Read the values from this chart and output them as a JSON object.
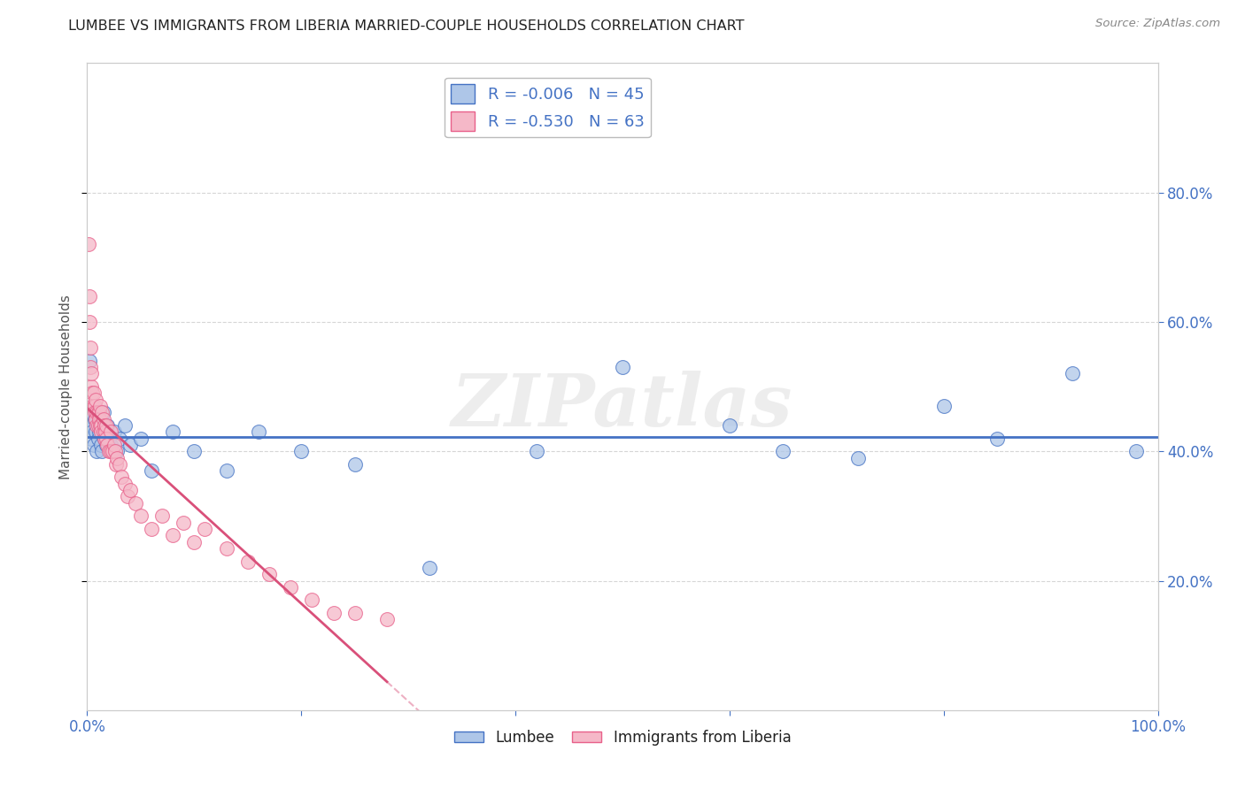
{
  "title": "LUMBEE VS IMMIGRANTS FROM LIBERIA MARRIED-COUPLE HOUSEHOLDS CORRELATION CHART",
  "source": "Source: ZipAtlas.com",
  "ylabel": "Married-couple Households",
  "xlim": [
    0,
    1.0
  ],
  "ylim": [
    0,
    1.0
  ],
  "xticks": [
    0.0,
    0.2,
    0.4,
    0.6,
    0.8,
    1.0
  ],
  "xticklabels": [
    "0.0%",
    "",
    "",
    "",
    "",
    "100.0%"
  ],
  "yticks_right": [
    0.2,
    0.4,
    0.6,
    0.8
  ],
  "yticklabels_right": [
    "20.0%",
    "40.0%",
    "60.0%",
    "80.0%"
  ],
  "lumbee_R": "-0.006",
  "lumbee_N": "45",
  "liberia_R": "-0.530",
  "liberia_N": "63",
  "lumbee_color": "#aec6e8",
  "liberia_color": "#f5b8c8",
  "lumbee_edge_color": "#4472c4",
  "liberia_edge_color": "#e8608a",
  "lumbee_line_color": "#4472c4",
  "liberia_line_color": "#d9507a",
  "background_color": "#ffffff",
  "grid_color": "#cccccc",
  "watermark": "ZIPatlas",
  "legend_label_color": "#4472c4",
  "tick_color": "#4472c4",
  "lumbee_x": [
    0.002,
    0.003,
    0.003,
    0.004,
    0.005,
    0.005,
    0.006,
    0.007,
    0.008,
    0.009,
    0.01,
    0.011,
    0.012,
    0.013,
    0.014,
    0.015,
    0.016,
    0.017,
    0.018,
    0.019,
    0.02,
    0.022,
    0.025,
    0.028,
    0.03,
    0.035,
    0.04,
    0.05,
    0.06,
    0.08,
    0.1,
    0.13,
    0.16,
    0.2,
    0.25,
    0.32,
    0.42,
    0.5,
    0.6,
    0.65,
    0.72,
    0.8,
    0.85,
    0.92,
    0.98
  ],
  "lumbee_y": [
    0.54,
    0.44,
    0.46,
    0.42,
    0.44,
    0.43,
    0.41,
    0.45,
    0.43,
    0.4,
    0.42,
    0.43,
    0.44,
    0.41,
    0.4,
    0.46,
    0.42,
    0.43,
    0.41,
    0.44,
    0.42,
    0.41,
    0.43,
    0.4,
    0.42,
    0.44,
    0.41,
    0.42,
    0.37,
    0.43,
    0.4,
    0.37,
    0.43,
    0.4,
    0.38,
    0.22,
    0.4,
    0.53,
    0.44,
    0.4,
    0.39,
    0.47,
    0.42,
    0.52,
    0.4
  ],
  "liberia_x": [
    0.001,
    0.002,
    0.002,
    0.003,
    0.003,
    0.004,
    0.004,
    0.005,
    0.005,
    0.006,
    0.006,
    0.007,
    0.007,
    0.008,
    0.008,
    0.009,
    0.009,
    0.01,
    0.01,
    0.011,
    0.011,
    0.012,
    0.012,
    0.013,
    0.013,
    0.014,
    0.015,
    0.015,
    0.016,
    0.016,
    0.017,
    0.018,
    0.018,
    0.019,
    0.02,
    0.022,
    0.022,
    0.024,
    0.025,
    0.026,
    0.027,
    0.028,
    0.03,
    0.032,
    0.035,
    0.038,
    0.04,
    0.045,
    0.05,
    0.06,
    0.07,
    0.08,
    0.09,
    0.1,
    0.11,
    0.13,
    0.15,
    0.17,
    0.19,
    0.21,
    0.23,
    0.25,
    0.28
  ],
  "liberia_y": [
    0.72,
    0.64,
    0.6,
    0.56,
    0.53,
    0.5,
    0.52,
    0.49,
    0.47,
    0.47,
    0.49,
    0.47,
    0.46,
    0.48,
    0.45,
    0.46,
    0.44,
    0.46,
    0.44,
    0.46,
    0.45,
    0.44,
    0.47,
    0.44,
    0.43,
    0.46,
    0.45,
    0.43,
    0.44,
    0.42,
    0.43,
    0.44,
    0.42,
    0.41,
    0.4,
    0.4,
    0.43,
    0.4,
    0.41,
    0.4,
    0.38,
    0.39,
    0.38,
    0.36,
    0.35,
    0.33,
    0.34,
    0.32,
    0.3,
    0.28,
    0.3,
    0.27,
    0.29,
    0.26,
    0.28,
    0.25,
    0.23,
    0.21,
    0.19,
    0.17,
    0.15,
    0.15,
    0.14
  ]
}
